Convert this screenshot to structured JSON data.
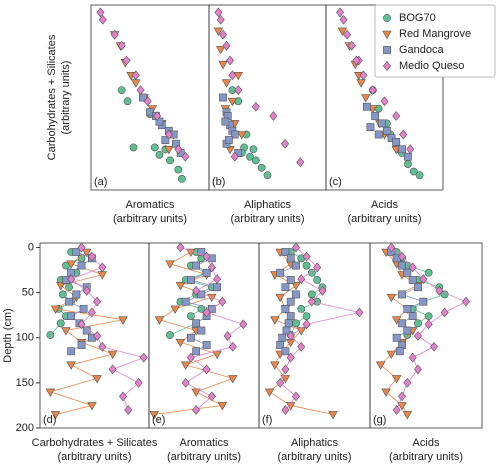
{
  "chart_data": [
    {
      "type": "scatter",
      "panel_label": "(a)",
      "ylabel": "Carbohydrates + Silicates",
      "ylabel_units": "(arbitrary units)",
      "xlabel": "Aromatics",
      "xlabel_units": "(arbitrary units)",
      "xlim": [
        0,
        100
      ],
      "ylim": [
        0,
        100
      ],
      "series": [
        {
          "name": "BOG70",
          "color": "#5fbf93",
          "marker": "circle",
          "x": [
            26,
            31,
            36,
            54,
            58,
            67,
            74,
            77,
            50,
            63
          ],
          "values": [
            54,
            48,
            23,
            23,
            19,
            16,
            11,
            6,
            41,
            22
          ]
        },
        {
          "name": "Red Mangrove",
          "color": "#e8874a",
          "marker": "triangle-down",
          "x": [
            20,
            25,
            29,
            38,
            45,
            52,
            60,
            70,
            66,
            34
          ],
          "values": [
            84,
            78,
            69,
            58,
            50,
            44,
            36,
            30,
            22,
            62
          ]
        },
        {
          "name": "Gandoca",
          "color": "#8597c8",
          "marker": "square",
          "x": [
            44,
            50,
            55,
            60,
            66,
            70,
            72,
            76,
            63,
            58
          ],
          "values": [
            50,
            42,
            40,
            35,
            32,
            30,
            25,
            20,
            27,
            37
          ]
        },
        {
          "name": "Medio Queso",
          "color": "#e580cc",
          "marker": "diamond",
          "x": [
            8,
            10,
            20,
            26,
            30,
            38,
            42,
            48,
            56,
            66,
            74,
            80
          ],
          "values": [
            96,
            92,
            84,
            78,
            70,
            62,
            54,
            48,
            40,
            30,
            22,
            18
          ]
        }
      ]
    },
    {
      "type": "scatter",
      "panel_label": "(b)",
      "xlabel": "Aliphatics",
      "xlabel_units": "(arbitrary units)",
      "xlim": [
        0,
        100
      ],
      "ylim": [
        0,
        100
      ],
      "series": [
        {
          "name": "BOG70",
          "color": "#5fbf93",
          "marker": "circle",
          "x": [
            20,
            25,
            30,
            28,
            35,
            40,
            45,
            50,
            38,
            32
          ],
          "values": [
            54,
            48,
            23,
            20,
            18,
            16,
            12,
            8,
            22,
            30
          ]
        },
        {
          "name": "Red Mangrove",
          "color": "#e8874a",
          "marker": "triangle-down",
          "x": [
            8,
            10,
            12,
            15,
            20,
            14,
            22,
            28,
            18,
            25
          ],
          "values": [
            86,
            76,
            68,
            58,
            48,
            44,
            36,
            30,
            22,
            62
          ]
        },
        {
          "name": "Gandoca",
          "color": "#8597c8",
          "marker": "square",
          "x": [
            12,
            15,
            16,
            18,
            20,
            22,
            15,
            25,
            17,
            14
          ],
          "values": [
            50,
            42,
            40,
            35,
            32,
            30,
            25,
            20,
            27,
            37
          ]
        },
        {
          "name": "Medio Queso",
          "color": "#e580cc",
          "marker": "diamond",
          "x": [
            8,
            10,
            12,
            15,
            18,
            20,
            25,
            40,
            55,
            65,
            78,
            22
          ],
          "values": [
            96,
            92,
            84,
            78,
            70,
            62,
            54,
            45,
            40,
            25,
            15,
            18
          ]
        }
      ]
    },
    {
      "type": "scatter",
      "panel_label": "(c)",
      "xlabel": "Acids",
      "xlabel_units": "(arbitrary units)",
      "xlim": [
        0,
        100
      ],
      "ylim": [
        0,
        100
      ],
      "legend": "upper right",
      "series": [
        {
          "name": "BOG70",
          "color": "#5fbf93",
          "marker": "circle",
          "x": [
            40,
            45,
            55,
            60,
            65,
            70,
            75,
            80,
            52,
            62
          ],
          "values": [
            54,
            44,
            30,
            25,
            20,
            14,
            10,
            8,
            36,
            22
          ]
        },
        {
          "name": "Red Mangrove",
          "color": "#e8874a",
          "marker": "triangle-down",
          "x": [
            14,
            20,
            25,
            30,
            34,
            40,
            46,
            50,
            60,
            28
          ],
          "values": [
            86,
            78,
            68,
            58,
            50,
            44,
            36,
            30,
            22,
            62
          ]
        },
        {
          "name": "Gandoca",
          "color": "#8597c8",
          "marker": "square",
          "x": [
            35,
            42,
            48,
            52,
            56,
            60,
            65,
            70,
            45,
            38
          ],
          "values": [
            45,
            40,
            36,
            32,
            28,
            26,
            22,
            18,
            30,
            34
          ]
        },
        {
          "name": "Medio Queso",
          "color": "#e580cc",
          "marker": "diamond",
          "x": [
            12,
            15,
            18,
            22,
            28,
            32,
            40,
            50,
            60,
            66,
            72,
            26
          ],
          "values": [
            96,
            92,
            84,
            78,
            70,
            62,
            54,
            48,
            40,
            30,
            22,
            70
          ]
        }
      ]
    },
    {
      "type": "profile",
      "panel_label": "(d)",
      "ylabel": "Depth (cm)",
      "xlabel": "Carbohydrates + Silicates",
      "xlabel_units": "(arbitrary units)",
      "xlim": [
        0,
        105
      ],
      "ylim": [
        -5,
        200
      ],
      "invert_y": true,
      "yticks": [
        0,
        50,
        100,
        150,
        200
      ],
      "series": [
        {
          "name": "BOG70",
          "color": "#5fbf93",
          "marker": "circle",
          "x": [
            30,
            40,
            25,
            35,
            20,
            28,
            22,
            30,
            18,
            25,
            20,
            10
          ],
          "values": [
            5,
            12,
            20,
            28,
            36,
            44,
            52,
            60,
            68,
            76,
            84,
            97
          ]
        },
        {
          "name": "Red Mangrove",
          "color": "#e8874a",
          "marker": "triangle-down",
          "x": [
            45,
            30,
            60,
            20,
            35,
            15,
            80,
            25,
            40,
            70,
            30,
            55,
            10,
            50,
            15
          ],
          "values": [
            5,
            18,
            30,
            42,
            55,
            68,
            80,
            92,
            105,
            118,
            130,
            145,
            160,
            175,
            185
          ]
        },
        {
          "name": "Gandoca",
          "color": "#8597c8",
          "marker": "square",
          "x": [
            35,
            50,
            40,
            30,
            25,
            45,
            35,
            28,
            42,
            30,
            38,
            45,
            50,
            40,
            30
          ],
          "values": [
            5,
            12,
            20,
            28,
            36,
            44,
            52,
            60,
            68,
            76,
            84,
            92,
            100,
            108,
            115
          ]
        },
        {
          "name": "Medio Queso",
          "color": "#e580cc",
          "marker": "diamond",
          "x": [
            40,
            50,
            60,
            30,
            45,
            55,
            50,
            40,
            55,
            60,
            100,
            70,
            95,
            80,
            85
          ],
          "values": [
            0,
            10,
            22,
            35,
            48,
            60,
            72,
            85,
            98,
            110,
            122,
            135,
            150,
            165,
            180
          ]
        }
      ]
    },
    {
      "type": "profile",
      "panel_label": "(e)",
      "xlabel": "Aromatics",
      "xlabel_units": "(arbitrary units)",
      "xlim": [
        0,
        105
      ],
      "ylim": [
        -5,
        200
      ],
      "invert_y": true,
      "series": [
        {
          "name": "BOG70",
          "color": "#5fbf93",
          "marker": "circle",
          "x": [
            45,
            50,
            40,
            55,
            35,
            60,
            45,
            30,
            50,
            40,
            45,
            20
          ],
          "values": [
            5,
            12,
            20,
            28,
            36,
            44,
            52,
            60,
            68,
            76,
            84,
            97
          ]
        },
        {
          "name": "Red Mangrove",
          "color": "#e8874a",
          "marker": "triangle-down",
          "x": [
            40,
            20,
            55,
            30,
            60,
            25,
            10,
            45,
            30,
            65,
            35,
            80,
            45,
            70,
            5
          ],
          "values": [
            5,
            18,
            30,
            42,
            55,
            68,
            80,
            92,
            105,
            118,
            130,
            145,
            160,
            175,
            185
          ]
        },
        {
          "name": "Gandoca",
          "color": "#8597c8",
          "marker": "square",
          "x": [
            50,
            60,
            45,
            55,
            40,
            65,
            50,
            35,
            60,
            55,
            45,
            50,
            40,
            55,
            45
          ],
          "values": [
            5,
            12,
            20,
            28,
            36,
            44,
            52,
            60,
            68,
            76,
            84,
            92,
            100,
            108,
            115
          ]
        },
        {
          "name": "Medio Queso",
          "color": "#e580cc",
          "marker": "diamond",
          "x": [
            30,
            55,
            60,
            65,
            45,
            70,
            55,
            90,
            75,
            80,
            40,
            55,
            35,
            60,
            45
          ],
          "values": [
            0,
            10,
            22,
            35,
            48,
            60,
            72,
            85,
            98,
            110,
            122,
            135,
            150,
            165,
            180
          ]
        }
      ]
    },
    {
      "type": "profile",
      "panel_label": "(f)",
      "xlabel": "Aliphatics",
      "xlabel_units": "(arbitrary units)",
      "xlim": [
        0,
        105
      ],
      "ylim": [
        -5,
        200
      ],
      "invert_y": true,
      "series": [
        {
          "name": "BOG70",
          "color": "#5fbf93",
          "marker": "circle",
          "x": [
            30,
            40,
            45,
            50,
            55,
            60,
            50,
            55,
            40,
            45,
            35,
            30
          ],
          "values": [
            5,
            12,
            20,
            28,
            36,
            44,
            52,
            60,
            68,
            76,
            84,
            97
          ]
        },
        {
          "name": "Red Mangrove",
          "color": "#e8874a",
          "marker": "triangle-down",
          "x": [
            20,
            30,
            15,
            35,
            20,
            25,
            15,
            40,
            30,
            20,
            15,
            25,
            10,
            30,
            70
          ],
          "values": [
            5,
            18,
            30,
            42,
            55,
            68,
            80,
            92,
            105,
            118,
            130,
            145,
            160,
            175,
            185
          ]
        },
        {
          "name": "Gandoca",
          "color": "#8597c8",
          "marker": "square",
          "x": [
            25,
            30,
            35,
            20,
            30,
            25,
            35,
            30,
            25,
            30,
            28,
            26,
            22,
            20,
            25
          ],
          "values": [
            5,
            12,
            20,
            28,
            36,
            44,
            52,
            60,
            68,
            76,
            84,
            92,
            100,
            108,
            115
          ]
        },
        {
          "name": "Medio Queso",
          "color": "#e580cc",
          "marker": "diamond",
          "x": [
            35,
            45,
            55,
            40,
            60,
            50,
            95,
            45,
            30,
            40,
            30,
            25,
            20,
            35,
            25
          ],
          "values": [
            0,
            10,
            22,
            35,
            48,
            60,
            72,
            85,
            98,
            110,
            122,
            135,
            150,
            165,
            180
          ]
        }
      ]
    },
    {
      "type": "profile",
      "panel_label": "(g)",
      "xlabel": "Acids",
      "xlabel_units": "(arbitrary units)",
      "xlim": [
        0,
        105
      ],
      "ylim": [
        -5,
        200
      ],
      "invert_y": true,
      "series": [
        {
          "name": "BOG70",
          "color": "#5fbf93",
          "marker": "circle",
          "x": [
            25,
            30,
            35,
            55,
            45,
            65,
            70,
            50,
            40,
            55,
            45,
            35
          ],
          "values": [
            5,
            12,
            20,
            28,
            36,
            44,
            52,
            60,
            68,
            76,
            84,
            97
          ]
        },
        {
          "name": "Red Mangrove",
          "color": "#e8874a",
          "marker": "triangle-down",
          "x": [
            15,
            25,
            30,
            45,
            20,
            35,
            25,
            40,
            30,
            20,
            10,
            25,
            15,
            30,
            35
          ],
          "values": [
            5,
            18,
            30,
            42,
            55,
            68,
            80,
            92,
            105,
            118,
            130,
            145,
            160,
            175,
            185
          ]
        },
        {
          "name": "Gandoca",
          "color": "#8597c8",
          "marker": "square",
          "x": [
            20,
            25,
            30,
            35,
            40,
            45,
            30,
            50,
            35,
            40,
            30,
            35,
            25,
            30,
            28
          ],
          "values": [
            5,
            12,
            20,
            28,
            36,
            44,
            52,
            60,
            68,
            76,
            84,
            92,
            100,
            108,
            115
          ]
        },
        {
          "name": "Medio Queso",
          "color": "#e580cc",
          "marker": "diamond",
          "x": [
            20,
            30,
            40,
            50,
            65,
            90,
            70,
            55,
            45,
            60,
            40,
            45,
            35,
            30,
            25
          ],
          "values": [
            0,
            10,
            22,
            35,
            48,
            60,
            72,
            85,
            98,
            110,
            122,
            135,
            150,
            165,
            180
          ]
        }
      ]
    }
  ]
}
